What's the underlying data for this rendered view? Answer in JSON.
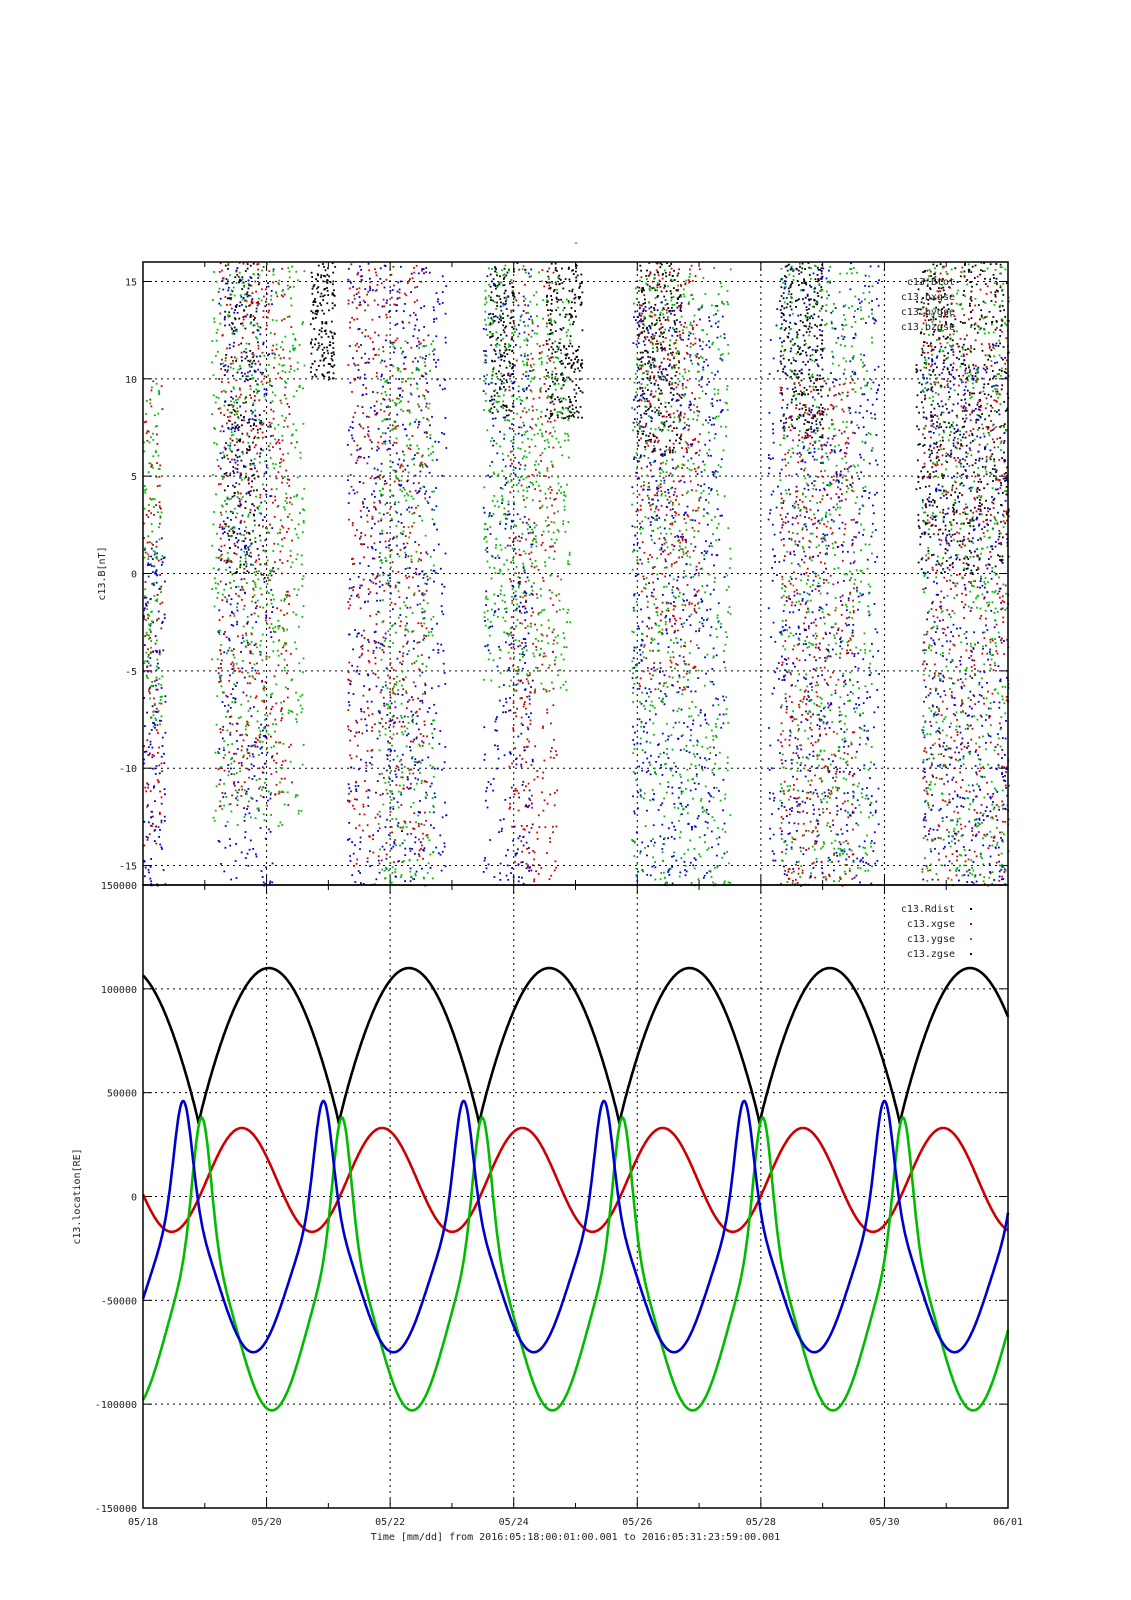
{
  "figure": {
    "title": "-",
    "xlabel": "Time [mm/dd]  from 2016:05:18:00:01:00.001  to  2016:05:31:23:59:00.001",
    "x_ticks": [
      "05/18",
      "05/20",
      "05/22",
      "05/24",
      "05/26",
      "05/28",
      "05/30",
      "06/01"
    ]
  },
  "chart_data": [
    {
      "type": "scatter",
      "title": "-",
      "ylabel": "c13.B[nT]",
      "xlabel": "Time [mm/dd]  from 2016:05:18:00:01:00.001  to  2016:05:31:23:59:00.001",
      "x_range": [
        "2016-05-18",
        "2016-06-01"
      ],
      "ylim": [
        -16,
        16
      ],
      "y_ticks": [
        "-15",
        "-10",
        "-5",
        "0",
        "5",
        "10",
        "15"
      ],
      "grid": true,
      "legend_position": "top-right",
      "series": [
        {
          "name": "c13.Btot",
          "color": "#000000",
          "bursts": [
            [
              1.3,
              1.9,
              0,
              16
            ],
            [
              2.7,
              3.1,
              10,
              16
            ],
            [
              5.6,
              6.0,
              8,
              16
            ],
            [
              6.5,
              7.1,
              8,
              16
            ],
            [
              8.0,
              8.7,
              6,
              16
            ],
            [
              10.3,
              11.0,
              7,
              16
            ],
            [
              12.5,
              14.0,
              0,
              16
            ]
          ]
        },
        {
          "name": "c13.bxgse",
          "color": "#cc0000",
          "bursts": [
            [
              0.0,
              0.3,
              -14,
              10
            ],
            [
              1.2,
              2.4,
              -12,
              16
            ],
            [
              3.3,
              4.6,
              -15,
              16
            ],
            [
              5.9,
              6.7,
              -16,
              16
            ],
            [
              8.0,
              9.0,
              -6,
              16
            ],
            [
              10.3,
              11.5,
              -16,
              10
            ],
            [
              12.6,
              14.0,
              -16,
              16
            ]
          ]
        },
        {
          "name": "c13.bygse",
          "color": "#0000cc",
          "bursts": [
            [
              0.0,
              0.35,
              -16,
              2
            ],
            [
              1.2,
              2.1,
              -16,
              16
            ],
            [
              3.3,
              4.9,
              -16,
              16
            ],
            [
              5.5,
              6.3,
              -16,
              16
            ],
            [
              7.9,
              9.4,
              -16,
              14
            ],
            [
              10.1,
              11.9,
              -16,
              16
            ],
            [
              12.6,
              14.0,
              -16,
              12
            ]
          ]
        },
        {
          "name": "c13.bzgse",
          "color": "#00bb00",
          "bursts": [
            [
              0.0,
              0.3,
              -8,
              10
            ],
            [
              1.1,
              2.6,
              -13,
              16
            ],
            [
              3.8,
              4.7,
              -16,
              12
            ],
            [
              5.5,
              6.9,
              -6,
              16
            ],
            [
              7.9,
              9.5,
              -16,
              16
            ],
            [
              10.3,
              11.8,
              -16,
              16
            ],
            [
              12.6,
              14.0,
              -16,
              16
            ]
          ]
        }
      ]
    },
    {
      "type": "line",
      "ylabel": "c13.location[RE]",
      "xlabel": "Time [mm/dd]  from 2016:05:18:00:01:00.001  to  2016:05:31:23:59:00.001",
      "x_range": [
        "2016-05-18",
        "2016-06-01"
      ],
      "ylim": [
        -150000,
        150000
      ],
      "y_ticks": [
        "-150000",
        "-100000",
        "-50000",
        "0",
        "50000",
        "100000",
        "150000"
      ],
      "grid": true,
      "legend_position": "top-right",
      "orbit_period_days": 2.27,
      "series": [
        {
          "name": "c13.Rdist",
          "color": "#000000",
          "min": 35000,
          "max": 110000,
          "first_minimum_day": 0.9
        },
        {
          "name": "c13.xgse",
          "color": "#cc0000",
          "amplitude": 25000,
          "offset": 8000,
          "first_maximum_day": 1.6
        },
        {
          "name": "c13.ygse",
          "color": "#00bb00",
          "min": -103000,
          "max": 38000,
          "first_maximum_day": 0.95
        },
        {
          "name": "c13.zgse",
          "color": "#0000cc",
          "min": -75000,
          "max": 46000,
          "first_maximum_day": 0.65
        }
      ]
    }
  ]
}
